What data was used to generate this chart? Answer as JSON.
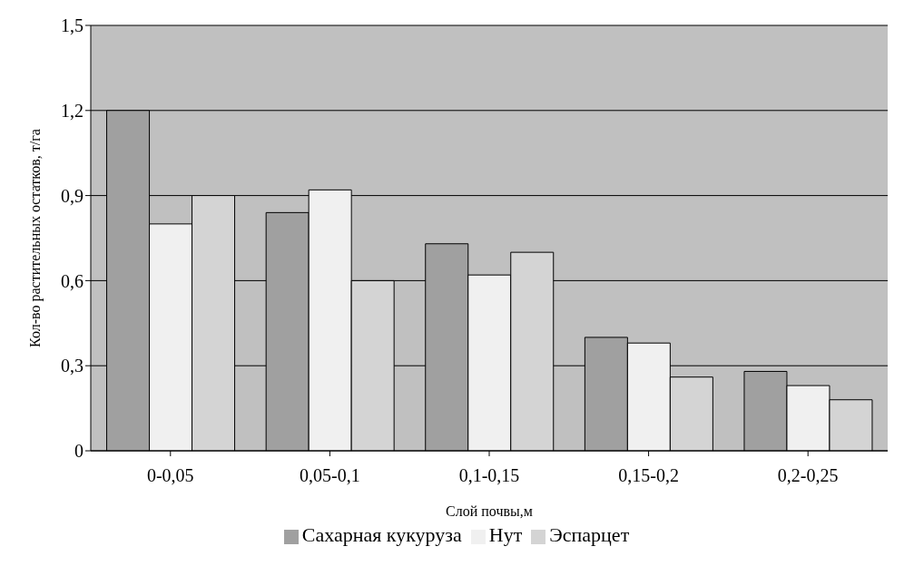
{
  "chart_data": {
    "type": "bar",
    "xlabel": "Слой почвы,м",
    "ylabel": "Кол-во растительных остатков, т/га",
    "categories": [
      "0-0,05",
      "0,05-0,1",
      "0,1-0,15",
      "0,15-0,2",
      "0,2-0,25"
    ],
    "series": [
      {
        "name": "Сахарная кукуруза",
        "color": "#a0a0a0",
        "values": [
          1.2,
          0.84,
          0.73,
          0.4,
          0.28
        ]
      },
      {
        "name": "Нут",
        "color": "#f0f0f0",
        "values": [
          0.8,
          0.92,
          0.62,
          0.38,
          0.23
        ]
      },
      {
        "name": "Эспарцет",
        "color": "#d4d4d4",
        "values": [
          0.9,
          0.6,
          0.7,
          0.26,
          0.18
        ]
      }
    ],
    "ylim": [
      0,
      1.5
    ],
    "yticks": [
      0,
      {
        "value": 0.3,
        "label": "0,3"
      },
      {
        "value": 0.6,
        "label": "0,6"
      },
      {
        "value": 0.9,
        "label": "0,9"
      },
      {
        "value": 1.2,
        "label": "1,2"
      },
      {
        "value": 1.5,
        "label": "1,5"
      }
    ],
    "grid": "y",
    "legend": "bottom"
  }
}
